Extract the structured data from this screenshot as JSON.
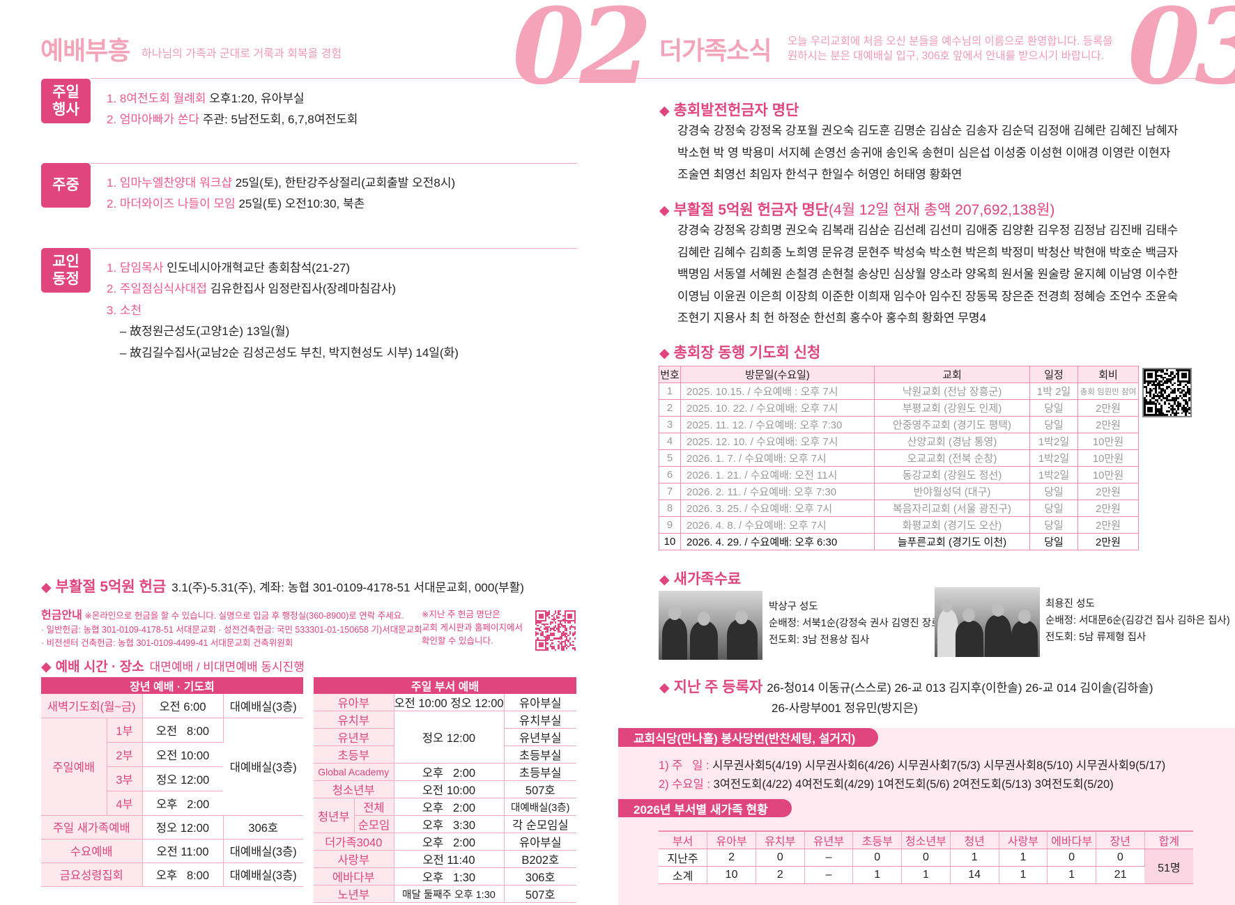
{
  "left": {
    "title": "예배부흥",
    "subtitle": "하나님의 가족과 군대로 거룩과 회복을 경험",
    "page_number": "02",
    "sections": [
      {
        "badge": [
          "주일",
          "행사"
        ],
        "items": [
          {
            "key": "1. 8여전도회 월례회",
            "text": " 오후1:20, 유아부실"
          },
          {
            "key": "2. 엄마아빠가 쏜다",
            "text": " 주관: 5남전도회, 6,7,8여전도회"
          }
        ]
      },
      {
        "badge": [
          "주중"
        ],
        "items": [
          {
            "key": "1. 임마누엘찬양대 워크샵",
            "text": " 25일(토), 한탄강주상절리(교회출발 오전8시)"
          },
          {
            "key": "2. 마더와이즈 나들이 모임",
            "text": " 25일(토) 오전10:30, 북촌"
          }
        ]
      },
      {
        "badge": [
          "교인",
          "동정"
        ],
        "items": [
          {
            "key": "1. 담임목사",
            "text": " 인도네시아개혁교단 총회참석(21-27)"
          },
          {
            "key": "2. 주일점심식사대접",
            "text": " 김유한집사 임정란집사(장례마침감사)"
          },
          {
            "key": "3. 소천",
            "text": ""
          },
          {
            "key": "",
            "text": "– 故정원근성도(고양1순) 13일(월)"
          },
          {
            "key": "",
            "text": "– 故김길수집사(교남2순 김성곤성도 부친, 박지현성도 시부) 14일(화)"
          }
        ]
      }
    ],
    "easter_offering": {
      "title": "부활절 5억원 헌금",
      "detail": "3.1(주)-5.31(주), 계좌: 농협 301-0109-4178-51 서대문교회, 000(부활)"
    },
    "offering_guide": {
      "label": "헌금안내",
      "note": "※온라인으로 헌금을 할 수 있습니다. 실명으로 입금 후 행정실(360-8900)로 연락 주세요.",
      "line2": "· 일반헌금: 농협 301-0109-4178-51 서대문교회 · 성전건축헌금: 국민 533301-01-150658 기)서대문교회",
      "line3": "· 비전센터 건축헌금: 농협 301-0109-4499-41 서대문교회 건축위원회",
      "side_note": [
        "※지난 주 헌금 명단은",
        "교회 게시판과 홈페이지에서",
        "확인할 수 있습니다."
      ]
    },
    "worship_section": {
      "title": "예배 시간 · 장소",
      "subtitle": "대면예배 / 비대면예배 동시진행"
    },
    "adult_table": {
      "header": "장년 예배 · 기도회",
      "dawn": {
        "label": "새벽기도회(월~금)",
        "time": "오전   6:00",
        "place": "대예배실(3층)"
      },
      "sunday": {
        "label": "주일예배",
        "place": "대예배실(3층)",
        "parts": [
          {
            "part": "1부",
            "time": "오전   8:00"
          },
          {
            "part": "2부",
            "time": "오전 10:00"
          },
          {
            "part": "3부",
            "time": "정오 12:00"
          },
          {
            "part": "4부",
            "time": "오후   2:00"
          }
        ]
      },
      "newfamily": {
        "label": "주일 새가족예배",
        "time": "정오 12:00",
        "place": "306호"
      },
      "wednesday": {
        "label": "수요예배",
        "time": "오전 11:00",
        "place": "대예배실(3층)"
      },
      "friday": {
        "label": "금요성령집회",
        "time": "오후   8:00",
        "place": "대예배실(3층)"
      }
    },
    "dept_table": {
      "header": "주일 부서 예배",
      "infant": {
        "label": "유아부",
        "time": "오전 10:00 정오 12:00",
        "place": "유아부실"
      },
      "shared_time": "정오 12:00",
      "kinder": {
        "label": "유치부",
        "place": "유치부실"
      },
      "junior": {
        "label": "유년부",
        "place": "유년부실"
      },
      "elementary": {
        "label": "초등부",
        "place": "초등부실"
      },
      "global": {
        "label": "Global Academy",
        "time": "오후   2:00",
        "place": "초등부실"
      },
      "youth": {
        "label": "청소년부",
        "time": "오전 10:00",
        "place": "507호"
      },
      "young_adult": {
        "label": "청년부",
        "all": {
          "label": "전체",
          "time": "오후   2:00",
          "place": "대예배실(3층)"
        },
        "cell": {
          "label": "순모임",
          "time": "오후   3:30",
          "place": "각 순모임실"
        }
      },
      "family3040": {
        "label": "더가족3040",
        "time": "오후   2:00",
        "place": "유아부실"
      },
      "love": {
        "label": "사랑부",
        "time": "오전 11:40",
        "place": "B202호"
      },
      "ephphatha": {
        "label": "에바다부",
        "time": "오후   1:30",
        "place": "306호"
      },
      "senior": {
        "label": "노년부",
        "time": "매달 둘째주 오후 1:30",
        "place": "507호"
      }
    }
  },
  "right": {
    "title": "더가족소식",
    "subtitle": [
      "오늘 우리교회에 처음 오신 분들을 예수님의 이름으로 환영합니다. 등록을",
      "원하시는 분은 대예배실 입구, 306호 앞에서 안내를 받으시기 바랍니다."
    ],
    "page_number": "03",
    "general_donors": {
      "title": "총회발전헌금자 명단",
      "lines": [
        "강경숙 강정숙 강정옥 강포월 권오숙 김도훈 김명순 김삼순 김송자 김순덕 김정애 김혜란 김혜진 남혜자",
        "박소현 박   영 박용미 서지혜 손영선 송귀애 송인옥 송현미 심은섭 이성중 이성현 이애경 이영란 이현자",
        "조술연 최영선 최임자 한석구 한일수 허영인 허태영 황화연"
      ]
    },
    "easter_donors": {
      "title": "부활절 5억원 헌금자 명단",
      "note": "(4월 12일 현재 총액 207,692,138원)",
      "lines": [
        "강경숙 강정옥 강희명 권오숙 김복래 김삼순 김선례 김선미 김애중 김양환 김우정 김정남 김진배 김태수",
        "김혜란 김혜수 김희종 노희영 문유경 문현주 박성숙 박소현 박은희 박정미 박청산 박현애 박호순 백금자",
        "백명임 서동열 서혜원 손철경 손현철 송상민 심상월 양소라 양옥희 원서울 원술랑 윤지혜 이남영 이수한",
        "이영님 이윤권 이은희 이장희 이준한 이희재 임수아 임수진 장동목 장은준 전경희 정혜승 조언수 조윤숙",
        "조현기 지용사 최   헌 하정순 한선희 홍수아 홍수희 황화연 무명4"
      ]
    },
    "prayer_tour": {
      "title": "총회장 동행 기도회 신청",
      "columns": [
        "번호",
        "방문일(수요일)",
        "교회",
        "일정",
        "회비"
      ],
      "rows": [
        [
          "1",
          "2025. 10.15. / 수요예배 : 오후 7시",
          "낙원교회 (전남 장흥군)",
          "1박 2일",
          "총회 임원만 참여"
        ],
        [
          "2",
          "2025. 10. 22. / 수요예배: 오후 7시",
          "부평교회 (강원도 인제)",
          "당일",
          "2만원"
        ],
        [
          "3",
          "2025. 11. 12. / 수요예배: 오후 7:30",
          "안중영주교회 (경기도 평택)",
          "당일",
          "2만원"
        ],
        [
          "4",
          "2025. 12. 10. / 수요예배: 오후 7시",
          "산양교회 (경남 통영)",
          "1박2일",
          "10만원"
        ],
        [
          "5",
          "2026. 1. 7. / 수요예배: 오후 7시",
          "오교교회 (전북 순창)",
          "1박2일",
          "10만원"
        ],
        [
          "6",
          "2026. 1. 21. / 수요예배: 오전 11시",
          "동강교회 (강원도 정선)",
          "1박2일",
          "10만원"
        ],
        [
          "7",
          "2026. 2. 11. / 수요예배: 오후 7:30",
          "반야월성덕 (대구)",
          "당일",
          "2만원"
        ],
        [
          "8",
          "2026. 3. 25. / 수요예배: 오후 7시",
          "복음자리교회 (서울 광진구)",
          "당일",
          "2만원"
        ],
        [
          "9",
          "2026. 4. 8. / 수요예배: 오후 7시",
          "화평교회 (경기도 오산)",
          "당일",
          "2만원"
        ],
        [
          "10",
          "2026. 4. 29. / 수요예배: 오후 6:30",
          "늘푸른교회 (경기도 이천)",
          "당일",
          "2만원"
        ]
      ]
    },
    "graduates": {
      "title": "새가족수료",
      "people": [
        {
          "name": "박상구 성도",
          "guide": "순배정: 서북1순(강정숙 권사 김영진 장로)",
          "evangelism": "전도회: 3남 전용상 집사"
        },
        {
          "name": "최용진 성도",
          "guide": "순배정: 서대문6순(김강건 집사 김하은 집사)",
          "evangelism": "전도회: 5남 류제형 집사"
        }
      ]
    },
    "registrants": {
      "title": "지난 주 등록자",
      "line1": "26-청014 이동규(스스로) 26-교 013 김지후(이한솔) 26-교 014 김이솔(김하솔)",
      "line2": "26-사랑부001 정유민(방지은)"
    },
    "cafeteria": {
      "title": "교회식당(만나홀) 봉사당번(반찬세팅, 설거지)",
      "sunday_label": "1) 주   일 :",
      "sunday": "시무권사회5(4/19) 시무권사회6(4/26) 시무권사회7(5/3) 시무권사회8(5/10) 시무권사회9(5/17)",
      "wednesday_label": "2) 수요일 :",
      "wednesday": "3여전도회(4/22) 4여전도회(4/29) 1여전도회(5/6) 2여전도회(5/13) 3여전도회(5/20)"
    },
    "newfamily_stats": {
      "title": "2026년 부서별 새가족 현황",
      "columns": [
        "부서",
        "유아부",
        "유치부",
        "유년부",
        "초등부",
        "청소년부",
        "청년",
        "사랑부",
        "에바다부",
        "장년",
        "합계"
      ],
      "rows": [
        {
          "label": "지난주",
          "values": [
            "2",
            "0",
            "–",
            "0",
            "0",
            "1",
            "1",
            "0",
            "0"
          ]
        },
        {
          "label": "소계",
          "values": [
            "10",
            "2",
            "–",
            "1",
            "1",
            "14",
            "1",
            "1",
            "21"
          ]
        }
      ],
      "total": "51명"
    }
  },
  "colors": {
    "accent": "#e0457e",
    "light_accent": "#f4a3b9",
    "panel": "#fde9ef"
  },
  "icons": {
    "bullet": "diamond-icon",
    "qr": "qr-code-icon"
  }
}
